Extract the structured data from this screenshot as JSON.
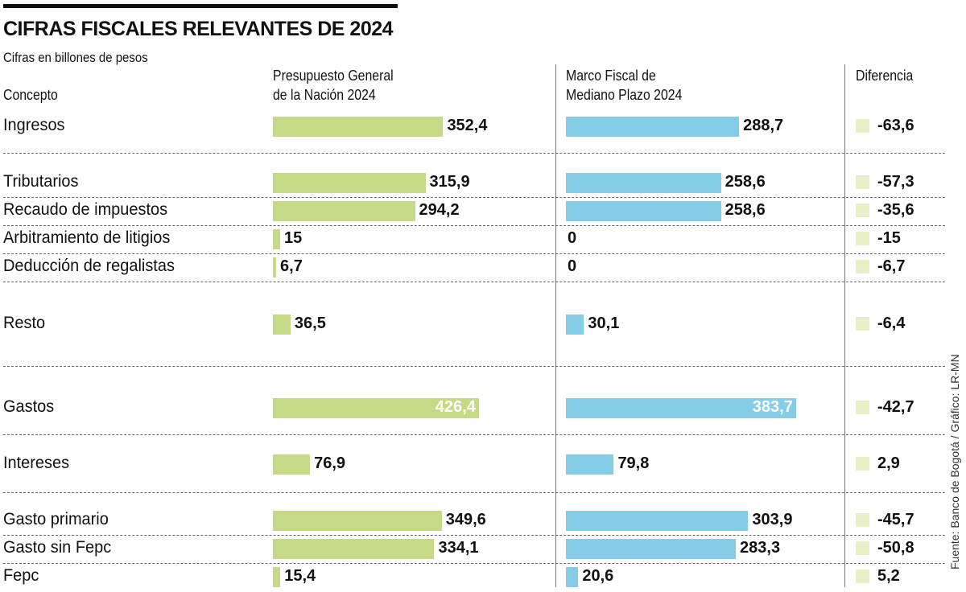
{
  "title": "CIFRAS FISCALES RELEVANTES DE 2024",
  "subtitle": "Cifras en billones de pesos",
  "source": "Fuente: Banco de Bogotá / Gráfico: LR-MN",
  "chart_data": {
    "type": "bar",
    "title": "CIFRAS FISCALES RELEVANTES DE 2024",
    "subtitle": "Cifras en billones de pesos",
    "category_header": "Concepto",
    "diff_header": "Diferencia",
    "colors": {
      "pgn": "#c5d986",
      "mfmp": "#85cde6",
      "diff": "#e6efc6"
    },
    "categories": [
      "Ingresos",
      "Tributarios",
      "Recaudo de impuestos",
      "Arbitramiento de litigios",
      "Deducción de regalistas",
      "Resto",
      "Gastos",
      "Intereses",
      "Gasto primario",
      "Gasto sin Fepc",
      "Fepc"
    ],
    "series": [
      {
        "name": "Presupuesto General de la Nación 2024",
        "name_lines": [
          "Presupuesto General",
          "de la Nación 2024"
        ],
        "values": [
          352.4,
          315.9,
          294.2,
          15,
          6.7,
          36.5,
          426.4,
          76.9,
          349.6,
          334.1,
          15.4
        ],
        "labels": [
          "352,4",
          "315,9",
          "294,2",
          "15",
          "6,7",
          "36,5",
          "426,4",
          "76,9",
          "349,6",
          "334,1",
          "15,4"
        ]
      },
      {
        "name": "Marco Fiscal de Mediano Plazo 2024",
        "name_lines": [
          "Marco Fiscal de",
          "Mediano Plazo 2024"
        ],
        "values": [
          288.7,
          258.6,
          258.6,
          0,
          0,
          30.1,
          383.7,
          79.8,
          303.9,
          283.3,
          20.6
        ],
        "labels": [
          "288,7",
          "258,6",
          "258,6",
          "0",
          "0",
          "30,1",
          "383,7",
          "79,8",
          "303,9",
          "283,3",
          "20,6"
        ]
      }
    ],
    "diferencia": {
      "values": [
        -63.6,
        -57.3,
        -35.6,
        -15,
        -6.7,
        -6.4,
        -42.7,
        2.9,
        -45.7,
        -50.8,
        5.2
      ],
      "labels": [
        "-63,6",
        "-57,3",
        "-35,6",
        "-15",
        "-6,7",
        "-6,4",
        "-42,7",
        "2,9",
        "-45,7",
        "-50,8",
        "5,2"
      ]
    }
  }
}
